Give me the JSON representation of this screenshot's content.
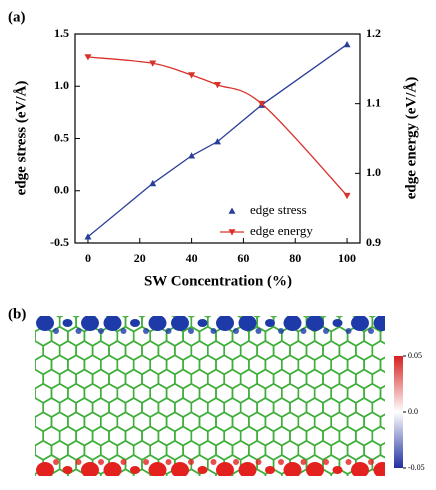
{
  "chart_data": {
    "type": "scatter",
    "panel_label": "(a)",
    "x_label": "SW Concentration (%)",
    "y_label": "edge stress (eV/Å)",
    "y2_label": "edge energy (eV/Å)",
    "x": [
      0,
      25,
      40,
      50,
      67,
      100
    ],
    "series": [
      {
        "name": "edge stress",
        "color": "#2a3f9a",
        "marker": "triangle-up",
        "values": [
          -0.44,
          0.07,
          0.335,
          0.47,
          0.82,
          1.4
        ]
      },
      {
        "name": "edge energy",
        "color": "#d9302a",
        "marker": "triangle-down",
        "axis": "y2",
        "values": [
          1.167,
          1.158,
          1.141,
          1.127,
          1.1,
          0.968
        ]
      }
    ],
    "xlim": [
      -5,
      105
    ],
    "xticks": [
      0,
      20,
      40,
      60,
      80,
      100
    ],
    "ylim": [
      -0.5,
      1.5
    ],
    "yticks": [
      -0.5,
      {
        "value": 0,
        "label": "0.0"
      },
      0.5,
      {
        "value": 1,
        "label": "1.0"
      },
      1.5
    ],
    "y2lim": [
      0.9,
      1.2
    ],
    "y2ticks": [
      0.9,
      {
        "value": 1,
        "label": "1.0"
      },
      1.1,
      1.2
    ],
    "legend": "lower right"
  },
  "panel_b": {
    "panel_label": "(b)",
    "colorbar": {
      "lim": [
        -0.05,
        0.05
      ],
      "ticks": [
        {
          "value": 0.05,
          "label": "0.05"
        },
        {
          "value": 0,
          "label": "0.0"
        },
        {
          "value": -0.05,
          "label": "-0.05"
        }
      ]
    }
  }
}
